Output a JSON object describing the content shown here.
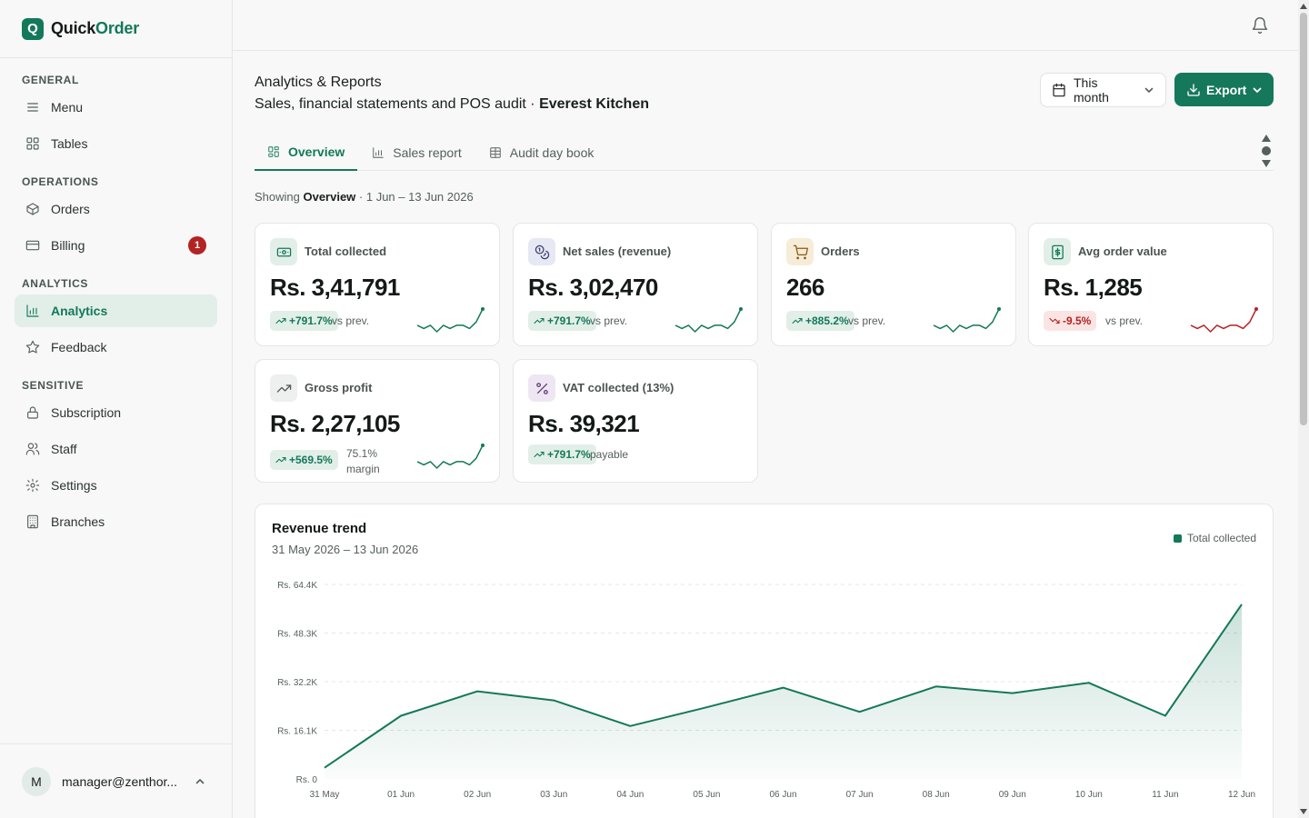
{
  "brand": {
    "logo_letter": "Q",
    "name_part1": "Quick",
    "name_part2": "Order",
    "accent": "#14785a"
  },
  "sidebar": {
    "sections": [
      {
        "title": "GENERAL",
        "items": [
          {
            "label": "Menu",
            "icon": "menu-icon"
          },
          {
            "label": "Tables",
            "icon": "grid-icon"
          }
        ]
      },
      {
        "title": "OPERATIONS",
        "items": [
          {
            "label": "Orders",
            "icon": "box-icon"
          },
          {
            "label": "Billing",
            "icon": "card-icon",
            "badge": "1"
          }
        ]
      },
      {
        "title": "ANALYTICS",
        "items": [
          {
            "label": "Analytics",
            "icon": "bar-chart-icon",
            "active": true
          },
          {
            "label": "Feedback",
            "icon": "star-icon"
          }
        ]
      },
      {
        "title": "SENSITIVE",
        "items": [
          {
            "label": "Subscription",
            "icon": "lock-icon"
          },
          {
            "label": "Staff",
            "icon": "users-icon"
          },
          {
            "label": "Settings",
            "icon": "gear-icon"
          },
          {
            "label": "Branches",
            "icon": "building-icon"
          }
        ]
      }
    ],
    "user": {
      "initial": "M",
      "email": "manager@zenthor..."
    }
  },
  "header": {
    "title": "Analytics & Reports",
    "subtitle_prefix": "Sales, financial statements and POS audit · ",
    "restaurant": "Everest Kitchen",
    "range_label": "This month",
    "export_label": "Export"
  },
  "tabs": [
    {
      "label": "Overview",
      "icon": "dashboard-icon",
      "active": true
    },
    {
      "label": "Sales report",
      "icon": "bar-chart-icon"
    },
    {
      "label": "Audit day book",
      "icon": "table-icon"
    }
  ],
  "showing": {
    "prefix": "Showing ",
    "tab": "Overview",
    "range": " · 1 Jun – 13 Jun 2026"
  },
  "kpis": [
    {
      "label": "Total collected",
      "value": "Rs. 3,41,791",
      "change": "+791.7%",
      "trend": "up",
      "note": "vs prev.",
      "icon": "cash-icon",
      "spark": [
        3,
        2,
        3,
        1,
        3,
        2,
        3,
        3,
        2,
        4,
        8
      ]
    },
    {
      "label": "Net sales (revenue)",
      "value": "Rs. 3,02,470",
      "change": "+791.7%",
      "trend": "up",
      "note": "vs prev.",
      "icon": "coins-icon",
      "spark": [
        3,
        2,
        3,
        1,
        3,
        2,
        3,
        3,
        2,
        4,
        8
      ]
    },
    {
      "label": "Orders",
      "value": "266",
      "change": "+885.2%",
      "trend": "up",
      "note": "vs prev.",
      "icon": "cart-icon",
      "spark": [
        3,
        2,
        3,
        1,
        3,
        2,
        3,
        3,
        2,
        4,
        8
      ]
    },
    {
      "label": "Avg order value",
      "value": "Rs. 1,285",
      "change": "-9.5%",
      "trend": "down",
      "note": "vs prev.",
      "icon": "dollar-icon",
      "spark": [
        3,
        2,
        3,
        1,
        3,
        2,
        3,
        3,
        2,
        4,
        8
      ]
    },
    {
      "label": "Gross profit",
      "value": "Rs. 2,27,105",
      "change": "+569.5%",
      "trend": "up",
      "note_line1": "75.1%",
      "note_line2": "margin",
      "icon": "trending-up-icon",
      "spark": [
        3,
        2,
        3,
        1,
        3,
        2,
        3,
        3,
        2,
        4,
        8
      ]
    },
    {
      "label": "VAT collected (13%)",
      "value": "Rs. 39,321",
      "change": "+791.7%",
      "trend": "up",
      "note": "payable",
      "icon": "percent-icon"
    }
  ],
  "chart": {
    "title": "Revenue trend",
    "subtitle": "31 May 2026 – 13 Jun 2026",
    "legend": "Total collected"
  },
  "chart_data": {
    "type": "area",
    "title": "Revenue trend",
    "subtitle": "31 May 2026 – 13 Jun 2026",
    "xlabel": "",
    "ylabel": "",
    "categories": [
      "31 May",
      "01 Jun",
      "02 Jun",
      "03 Jun",
      "04 Jun",
      "05 Jun",
      "06 Jun",
      "07 Jun",
      "08 Jun",
      "09 Jun",
      "10 Jun",
      "11 Jun",
      "12 Jun"
    ],
    "series": [
      {
        "name": "Total collected",
        "values": [
          3700,
          20900,
          29000,
          26000,
          17500,
          23700,
          30200,
          22200,
          30600,
          28400,
          31800,
          20900,
          57800
        ],
        "color": "#14785a"
      }
    ],
    "ylim": [
      0,
      64400
    ],
    "yticks": [
      0,
      16100,
      32200,
      48300,
      64400
    ],
    "ytick_labels": [
      "Rs. 0",
      "Rs. 16.1K",
      "Rs. 32.2K",
      "Rs. 48.3K",
      "Rs. 64.4K"
    ],
    "grid": true,
    "legend_position": "top-right"
  }
}
